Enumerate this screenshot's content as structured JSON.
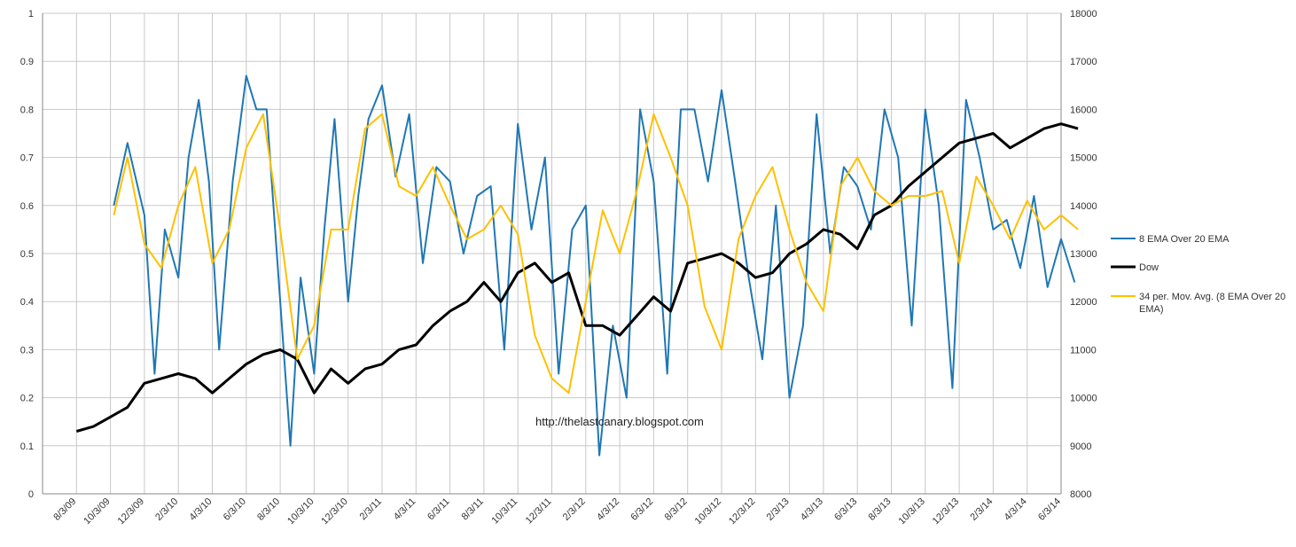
{
  "chart_data": {
    "type": "line",
    "title": "",
    "watermark": "http://thelastcanary.blogspot.com",
    "x_tick_labels": [
      "8/3/09",
      "10/3/09",
      "12/3/09",
      "2/3/10",
      "4/3/10",
      "6/3/10",
      "8/3/10",
      "10/3/10",
      "12/3/10",
      "2/3/11",
      "4/3/11",
      "6/3/11",
      "8/3/11",
      "10/3/11",
      "12/3/11",
      "2/3/12",
      "4/3/12",
      "6/3/12",
      "8/3/12",
      "10/3/12",
      "12/3/12",
      "2/3/13",
      "4/3/13",
      "6/3/13",
      "8/3/13",
      "10/3/13",
      "12/3/13",
      "2/3/14",
      "4/3/14",
      "6/3/14"
    ],
    "y_left": {
      "min": 0,
      "max": 1,
      "ticks": [
        "0",
        "0.1",
        "0.2",
        "0.3",
        "0.4",
        "0.5",
        "0.6",
        "0.7",
        "0.8",
        "0.9",
        "1"
      ]
    },
    "y_right": {
      "min": 8000,
      "max": 18000,
      "ticks": [
        "8000",
        "9000",
        "10000",
        "11000",
        "12000",
        "13000",
        "14000",
        "15000",
        "16000",
        "17000",
        "18000"
      ]
    },
    "series": [
      {
        "name": "8 EMA Over 20 EMA",
        "axis": "left",
        "color": "#1f77b4",
        "x": [
          1.1,
          1.5,
          2.0,
          2.3,
          2.6,
          3.0,
          3.3,
          3.6,
          3.9,
          4.2,
          4.6,
          5.0,
          5.3,
          5.6,
          6.0,
          6.3,
          6.6,
          7.0,
          7.3,
          7.6,
          8.0,
          8.3,
          8.6,
          9.0,
          9.4,
          9.8,
          10.2,
          10.6,
          11.0,
          11.4,
          11.8,
          12.2,
          12.6,
          13.0,
          13.4,
          13.8,
          14.2,
          14.6,
          15.0,
          15.4,
          15.8,
          16.2,
          16.6,
          17.0,
          17.4,
          17.8,
          18.2,
          18.6,
          19.0,
          19.4,
          19.8,
          20.2,
          20.6,
          21.0,
          21.4,
          21.8,
          22.2,
          22.6,
          23.0,
          23.4,
          23.8,
          24.2,
          24.6,
          25.0,
          25.4,
          25.8,
          26.2,
          26.6,
          27.0,
          27.4,
          27.8,
          28.2,
          28.6,
          29.0,
          29.4
        ],
        "values": [
          0.6,
          0.73,
          0.58,
          0.25,
          0.55,
          0.45,
          0.7,
          0.82,
          0.65,
          0.3,
          0.65,
          0.87,
          0.8,
          0.8,
          0.4,
          0.1,
          0.45,
          0.25,
          0.55,
          0.78,
          0.4,
          0.62,
          0.78,
          0.85,
          0.66,
          0.79,
          0.48,
          0.68,
          0.65,
          0.5,
          0.62,
          0.64,
          0.3,
          0.77,
          0.55,
          0.7,
          0.25,
          0.55,
          0.6,
          0.08,
          0.35,
          0.2,
          0.8,
          0.65,
          0.25,
          0.8,
          0.8,
          0.65,
          0.84,
          0.65,
          0.45,
          0.28,
          0.6,
          0.2,
          0.35,
          0.79,
          0.5,
          0.68,
          0.64,
          0.55,
          0.8,
          0.7,
          0.35,
          0.8,
          0.6,
          0.22,
          0.82,
          0.7,
          0.55,
          0.57,
          0.47,
          0.62,
          0.43,
          0.53,
          0.44
        ]
      },
      {
        "name": "Dow",
        "axis": "right",
        "color": "#000000",
        "x": [
          0.0,
          0.5,
          1.0,
          1.5,
          2.0,
          2.5,
          3.0,
          3.5,
          4.0,
          4.5,
          5.0,
          5.5,
          6.0,
          6.5,
          7.0,
          7.5,
          8.0,
          8.5,
          9.0,
          9.5,
          10.0,
          10.5,
          11.0,
          11.5,
          12.0,
          12.5,
          13.0,
          13.5,
          14.0,
          14.5,
          15.0,
          15.5,
          16.0,
          16.5,
          17.0,
          17.5,
          18.0,
          18.5,
          19.0,
          19.5,
          20.0,
          20.5,
          21.0,
          21.5,
          22.0,
          22.5,
          23.0,
          23.5,
          24.0,
          24.5,
          25.0,
          25.5,
          26.0,
          26.5,
          27.0,
          27.5,
          28.0,
          28.5,
          29.0,
          29.5
        ],
        "values": [
          9300,
          9400,
          9600,
          9800,
          10300,
          10400,
          10500,
          10400,
          10100,
          10400,
          10700,
          10900,
          11000,
          10800,
          10100,
          10600,
          10300,
          10600,
          10700,
          11000,
          11100,
          11500,
          11800,
          12000,
          12400,
          12000,
          12600,
          12800,
          12400,
          12600,
          11500,
          11500,
          11300,
          11700,
          12100,
          11800,
          12800,
          12900,
          13000,
          12800,
          12500,
          12600,
          13000,
          13200,
          13500,
          13400,
          13100,
          13800,
          14000,
          14400,
          14700,
          15000,
          15300,
          15400,
          15500,
          15200,
          15400,
          15600,
          15700,
          15600
        ]
      },
      {
        "name": "34 per. Mov. Avg. (8 EMA Over 20 EMA)",
        "axis": "left",
        "color": "#ffc000",
        "x": [
          1.1,
          1.5,
          2.0,
          2.5,
          3.0,
          3.5,
          4.0,
          4.5,
          5.0,
          5.5,
          6.0,
          6.5,
          7.0,
          7.5,
          8.0,
          8.5,
          9.0,
          9.5,
          10.0,
          10.5,
          11.0,
          11.5,
          12.0,
          12.5,
          13.0,
          13.5,
          14.0,
          14.5,
          15.0,
          15.5,
          16.0,
          16.5,
          17.0,
          17.5,
          18.0,
          18.5,
          19.0,
          19.5,
          20.0,
          20.5,
          21.0,
          21.5,
          22.0,
          22.5,
          23.0,
          23.5,
          24.0,
          24.5,
          25.0,
          25.5,
          26.0,
          26.5,
          27.0,
          27.5,
          28.0,
          28.5,
          29.0,
          29.5
        ],
        "values": [
          0.58,
          0.7,
          0.52,
          0.47,
          0.6,
          0.68,
          0.48,
          0.55,
          0.72,
          0.79,
          0.55,
          0.28,
          0.35,
          0.55,
          0.55,
          0.76,
          0.79,
          0.64,
          0.62,
          0.68,
          0.6,
          0.53,
          0.55,
          0.6,
          0.54,
          0.33,
          0.24,
          0.21,
          0.4,
          0.59,
          0.5,
          0.63,
          0.79,
          0.7,
          0.6,
          0.39,
          0.3,
          0.53,
          0.62,
          0.68,
          0.55,
          0.44,
          0.38,
          0.64,
          0.7,
          0.63,
          0.6,
          0.62,
          0.62,
          0.63,
          0.48,
          0.66,
          0.6,
          0.53,
          0.61,
          0.55,
          0.58,
          0.55
        ]
      }
    ],
    "legend": [
      "8 EMA Over 20 EMA",
      "Dow",
      "34 per. Mov. Avg. (8 EMA Over 20 EMA)"
    ],
    "legend_position": "right",
    "grid": true
  }
}
